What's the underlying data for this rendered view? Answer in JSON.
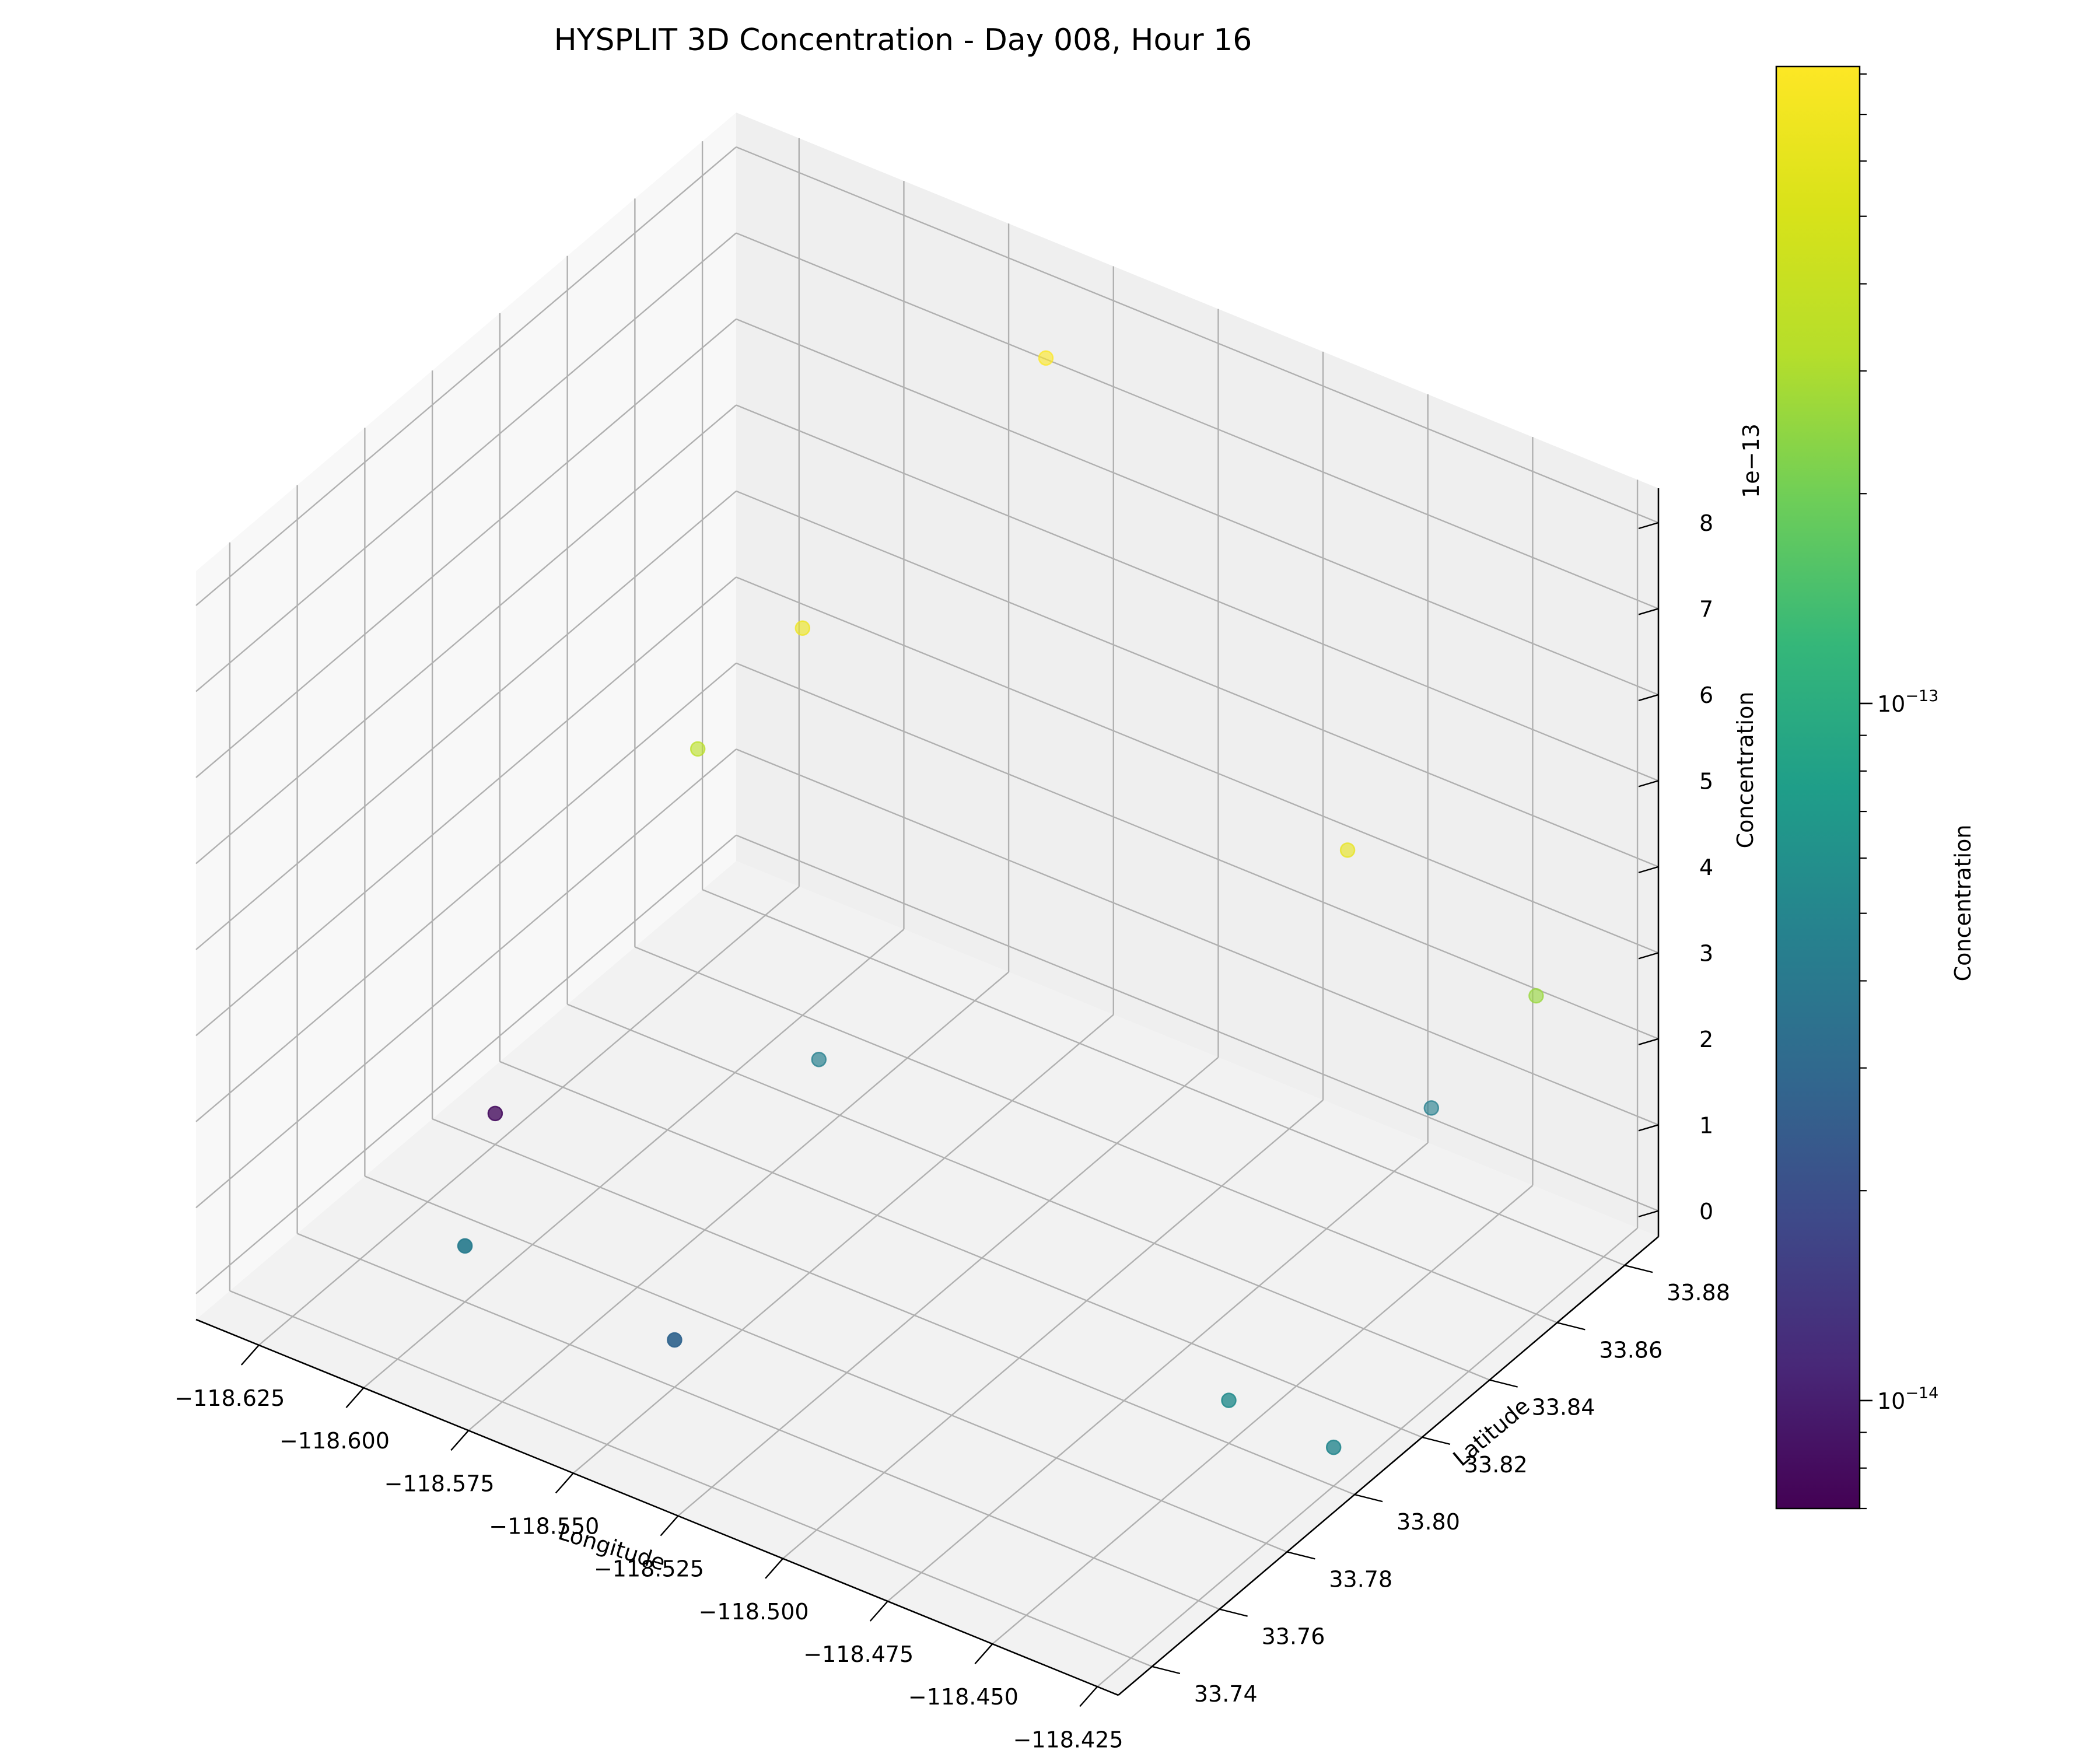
{
  "chart_data": {
    "type": "scatter",
    "subtype": "3d-scatter",
    "title": "HYSPLIT 3D Concentration - Day 008, Hour 16",
    "xlabel": "Longitude",
    "ylabel": "Latitude",
    "zlabel": "Concentration",
    "z_offset_text": "1e−13",
    "xlim": [
      -118.64,
      -118.42
    ],
    "ylim": [
      33.73,
      33.89
    ],
    "zlim": [
      -0.3,
      8.4
    ],
    "x_ticks": [
      -118.625,
      -118.6,
      -118.575,
      -118.55,
      -118.525,
      -118.5,
      -118.475,
      -118.45,
      -118.425
    ],
    "x_tick_labels": [
      "−118.625",
      "−118.600",
      "−118.575",
      "−118.550",
      "−118.525",
      "−118.500",
      "−118.475",
      "−118.450",
      "−118.425"
    ],
    "y_ticks": [
      33.74,
      33.76,
      33.78,
      33.8,
      33.82,
      33.84,
      33.86,
      33.88
    ],
    "y_tick_labels": [
      "33.74",
      "33.76",
      "33.78",
      "33.80",
      "33.82",
      "33.84",
      "33.86",
      "33.88"
    ],
    "z_ticks": [
      0,
      1,
      2,
      3,
      4,
      5,
      6,
      7,
      8
    ],
    "z_tick_labels": [
      "0",
      "1",
      "2",
      "3",
      "4",
      "5",
      "6",
      "7",
      "8"
    ],
    "grid": true,
    "points": [
      {
        "x": -118.625,
        "y": 33.8,
        "z": 0.06,
        "c": 0.08
      },
      {
        "x": -118.55,
        "y": 33.87,
        "z": 8.0,
        "c": 8.0
      },
      {
        "x": -118.6,
        "y": 33.86,
        "z": 4.2,
        "c": 6.8
      },
      {
        "x": -118.625,
        "y": 33.86,
        "z": 2.3,
        "c": 3.4
      },
      {
        "x": -118.58,
        "y": 33.84,
        "z": 0.25,
        "c": 0.45
      },
      {
        "x": -118.45,
        "y": 33.86,
        "z": 1.6,
        "c": 0.45
      },
      {
        "x": -118.47,
        "y": 33.86,
        "z": 4.2,
        "c": 6.2
      },
      {
        "x": -118.425,
        "y": 33.86,
        "z": 3.4,
        "c": 2.6
      },
      {
        "x": -118.425,
        "y": 33.8,
        "z": 0.15,
        "c": 0.5
      },
      {
        "x": -118.6,
        "y": 33.76,
        "z": 0.35,
        "c": 0.42
      },
      {
        "x": -118.55,
        "y": 33.76,
        "z": 0.25,
        "c": 0.28
      },
      {
        "x": -118.45,
        "y": 33.8,
        "z": 0.2,
        "c": 0.55
      }
    ],
    "colorbar": {
      "label": "Concentration",
      "scale": "log",
      "colormap": "viridis",
      "range": [
        7e-15,
        8.2e-13
      ],
      "ticks": [
        {
          "value": 1e-13,
          "base": "10",
          "exp": "−13"
        },
        {
          "value": 1e-14,
          "base": "10",
          "exp": "−14"
        }
      ]
    }
  }
}
